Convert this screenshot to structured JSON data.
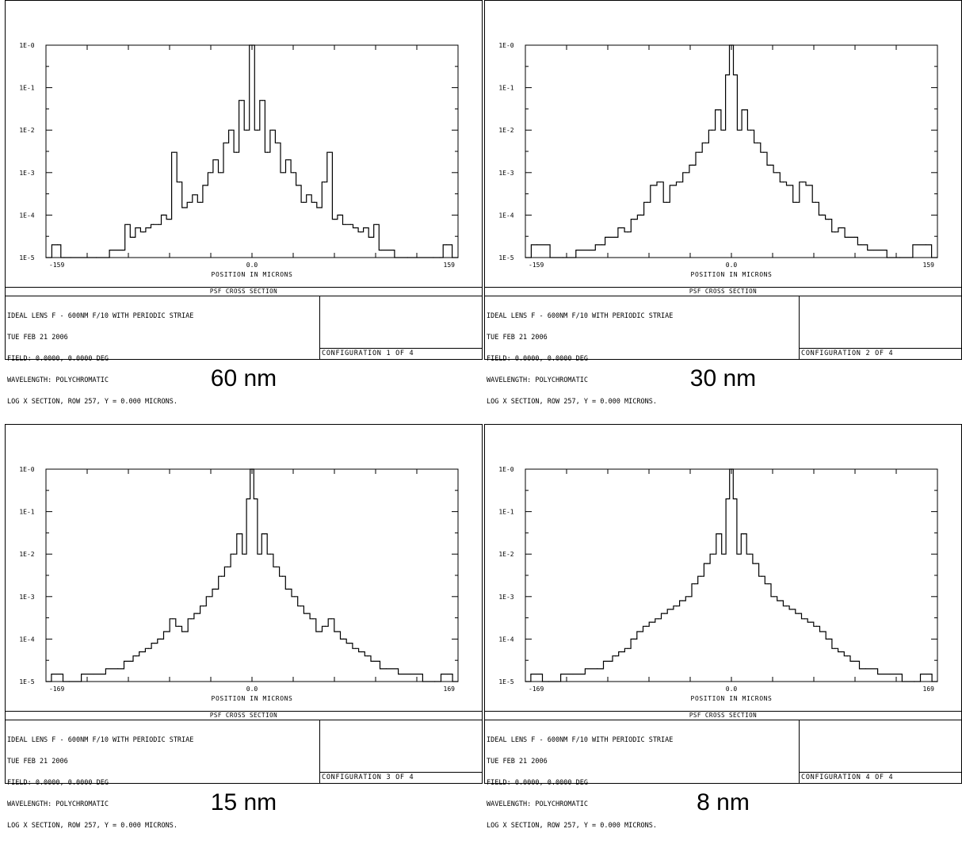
{
  "panels": [
    {
      "title_bar": "PSF CROSS SECTION",
      "info_lines": [
        "IDEAL LENS F - 600NM F/10 WITH PERIODIC STRIAE",
        "TUE FEB 21 2006",
        "FIELD: 0.0000, 0.0000 DEG",
        "WAVELENGTH: POLYCHROMATIC",
        "LOG X SECTION, ROW 257, Y = 0.000 MICRONS."
      ],
      "config_label": "CONFIGURATION 1 OF 4",
      "caption": "60 nm"
    },
    {
      "title_bar": "PSF CROSS SECTION",
      "info_lines": [
        "IDEAL LENS F - 600NM F/10 WITH PERIODIC STRIAE",
        "TUE FEB 21 2006",
        "FIELD: 0.0000, 0.0000 DEG",
        "WAVELENGTH: POLYCHROMATIC",
        "LOG X SECTION, ROW 257, Y = 0.000 MICRONS."
      ],
      "config_label": "CONFIGURATION 2 OF 4",
      "caption": "30 nm"
    },
    {
      "title_bar": "PSF CROSS SECTION",
      "info_lines": [
        "IDEAL LENS F - 600NM F/10 WITH PERIODIC STRIAE",
        "TUE FEB 21 2006",
        "FIELD: 0.0000, 0.0000 DEG",
        "WAVELENGTH: POLYCHROMATIC",
        "LOG X SECTION, ROW 257, Y = 0.000 MICRONS."
      ],
      "config_label": "CONFIGURATION 3 OF 4",
      "caption": "15 nm"
    },
    {
      "title_bar": "PSF CROSS SECTION",
      "info_lines": [
        "IDEAL LENS F - 600NM F/10 WITH PERIODIC STRIAE",
        "TUE FEB 21 2006",
        "FIELD: 0.0000, 0.0000 DEG",
        "WAVELENGTH: POLYCHROMATIC",
        "LOG X SECTION, ROW 257, Y = 0.000 MICRONS."
      ],
      "config_label": "CONFIGURATION 4 OF 4",
      "caption": "8 nm"
    }
  ],
  "chart_data": [
    {
      "type": "line",
      "title": "",
      "xlabel": "POSITION IN MICRONS",
      "ylabel": "",
      "y_scale": "log",
      "xlim": [
        -159,
        159
      ],
      "ylim": [
        1e-05,
        1
      ],
      "x_tick_labels": [
        "-159",
        "0.0",
        "159"
      ],
      "y_tick_labels": [
        "1E-0",
        "1E-1",
        "1E-2",
        "1E-3",
        "1E-4",
        "1E-5"
      ],
      "grid": false,
      "series": [
        {
          "x": [
            -159,
            -150,
            -145,
            -140,
            -120,
            -100,
            -96,
            -92,
            -88,
            -84,
            -80,
            -76,
            -72,
            -68,
            -64,
            -60,
            -56,
            -52,
            -48,
            -44,
            -40,
            -36,
            -32,
            -28,
            -24,
            -20,
            -16,
            -12,
            -8,
            -4,
            0,
            4,
            8,
            12,
            16,
            20,
            24,
            28,
            32,
            36,
            40,
            44,
            48,
            52,
            56,
            60,
            64,
            68,
            72,
            76,
            80,
            84,
            88,
            92,
            96,
            100,
            120,
            140,
            145,
            150,
            159
          ],
          "y": [
            1e-05,
            2e-05,
            1e-05,
            1e-05,
            1e-05,
            1.5e-05,
            6e-05,
            3e-05,
            5e-05,
            4e-05,
            5e-05,
            6e-05,
            6e-05,
            0.0001,
            8e-05,
            0.003,
            0.0006,
            0.00015,
            0.0002,
            0.0003,
            0.0002,
            0.0005,
            0.001,
            0.002,
            0.001,
            0.005,
            0.01,
            0.003,
            0.05,
            0.01,
            1.0,
            0.01,
            0.05,
            0.003,
            0.01,
            0.005,
            0.001,
            0.002,
            0.001,
            0.0005,
            0.0002,
            0.0003,
            0.0002,
            0.00015,
            0.0006,
            0.003,
            8e-05,
            0.0001,
            6e-05,
            6e-05,
            5e-05,
            4e-05,
            5e-05,
            3e-05,
            6e-05,
            1.5e-05,
            1e-05,
            1e-05,
            1e-05,
            2e-05,
            1e-05
          ]
        }
      ]
    },
    {
      "type": "line",
      "title": "",
      "xlabel": "POSITION IN MICRONS",
      "ylabel": "",
      "y_scale": "log",
      "xlim": [
        -159,
        159
      ],
      "ylim": [
        1e-05,
        1
      ],
      "x_tick_labels": [
        "-159",
        "0.0",
        "159"
      ],
      "y_tick_labels": [
        "1E-0",
        "1E-1",
        "1E-2",
        "1E-3",
        "1E-4",
        "1E-5"
      ],
      "grid": false,
      "series": [
        {
          "x": [
            -159,
            -150,
            -130,
            -110,
            -100,
            -95,
            -90,
            -85,
            -80,
            -75,
            -70,
            -65,
            -60,
            -55,
            -50,
            -45,
            -40,
            -35,
            -30,
            -25,
            -20,
            -15,
            -10,
            -6,
            -3,
            0,
            3,
            6,
            10,
            15,
            20,
            25,
            30,
            35,
            40,
            45,
            50,
            55,
            60,
            65,
            70,
            75,
            80,
            85,
            90,
            95,
            100,
            110,
            130,
            150,
            159
          ],
          "y": [
            1e-05,
            2e-05,
            1e-05,
            1.5e-05,
            2e-05,
            3e-05,
            3e-05,
            5e-05,
            4e-05,
            8e-05,
            0.0001,
            0.0002,
            0.0005,
            0.0006,
            0.0002,
            0.0005,
            0.0006,
            0.001,
            0.0015,
            0.003,
            0.005,
            0.01,
            0.03,
            0.01,
            0.2,
            1.0,
            0.2,
            0.01,
            0.03,
            0.01,
            0.005,
            0.003,
            0.0015,
            0.001,
            0.0006,
            0.0005,
            0.0002,
            0.0006,
            0.0005,
            0.0002,
            0.0001,
            8e-05,
            4e-05,
            5e-05,
            3e-05,
            3e-05,
            2e-05,
            1.5e-05,
            1e-05,
            2e-05,
            1e-05
          ]
        }
      ]
    },
    {
      "type": "line",
      "title": "",
      "xlabel": "POSITION IN MICRONS",
      "ylabel": "",
      "y_scale": "log",
      "xlim": [
        -169,
        169
      ],
      "ylim": [
        1e-05,
        1
      ],
      "x_tick_labels": [
        "-169",
        "0.0",
        "169"
      ],
      "y_tick_labels": [
        "1E-0",
        "1E-1",
        "1E-2",
        "1E-3",
        "1E-4",
        "1E-5"
      ],
      "grid": false,
      "series": [
        {
          "x": [
            -169,
            -160,
            -150,
            -130,
            -110,
            -100,
            -95,
            -90,
            -85,
            -80,
            -75,
            -70,
            -65,
            -60,
            -55,
            -50,
            -45,
            -40,
            -35,
            -30,
            -25,
            -20,
            -15,
            -10,
            -6,
            -3,
            0,
            3,
            6,
            10,
            15,
            20,
            25,
            30,
            35,
            40,
            45,
            50,
            55,
            60,
            65,
            70,
            75,
            80,
            85,
            90,
            95,
            100,
            110,
            130,
            150,
            160,
            169
          ],
          "y": [
            1e-05,
            1.5e-05,
            1e-05,
            1.5e-05,
            2e-05,
            3e-05,
            4e-05,
            5e-05,
            6e-05,
            8e-05,
            0.0001,
            0.00015,
            0.0003,
            0.0002,
            0.00015,
            0.0003,
            0.0004,
            0.0006,
            0.001,
            0.0015,
            0.003,
            0.005,
            0.01,
            0.03,
            0.01,
            0.2,
            1.0,
            0.2,
            0.01,
            0.03,
            0.01,
            0.005,
            0.003,
            0.0015,
            0.001,
            0.0006,
            0.0004,
            0.0003,
            0.00015,
            0.0002,
            0.0003,
            0.00015,
            0.0001,
            8e-05,
            6e-05,
            5e-05,
            4e-05,
            3e-05,
            2e-05,
            1.5e-05,
            1e-05,
            1.5e-05,
            1e-05
          ]
        }
      ]
    },
    {
      "type": "line",
      "title": "",
      "xlabel": "POSITION IN MICRONS",
      "ylabel": "",
      "y_scale": "log",
      "xlim": [
        -169,
        169
      ],
      "ylim": [
        1e-05,
        1
      ],
      "x_tick_labels": [
        "-169",
        "0.0",
        "169"
      ],
      "y_tick_labels": [
        "1E-0",
        "1E-1",
        "1E-2",
        "1E-3",
        "1E-4",
        "1E-5"
      ],
      "grid": false,
      "series": [
        {
          "x": [
            -169,
            -160,
            -150,
            -130,
            -110,
            -100,
            -95,
            -90,
            -85,
            -80,
            -75,
            -70,
            -65,
            -60,
            -55,
            -50,
            -45,
            -40,
            -35,
            -30,
            -25,
            -20,
            -15,
            -10,
            -6,
            -3,
            0,
            3,
            6,
            10,
            15,
            20,
            25,
            30,
            35,
            40,
            45,
            50,
            55,
            60,
            65,
            70,
            75,
            80,
            85,
            90,
            95,
            100,
            110,
            130,
            150,
            160,
            169
          ],
          "y": [
            1e-05,
            1.5e-05,
            1e-05,
            1.5e-05,
            2e-05,
            3e-05,
            4e-05,
            5e-05,
            6e-05,
            0.0001,
            0.00015,
            0.0002,
            0.00025,
            0.0003,
            0.0004,
            0.0005,
            0.0006,
            0.0008,
            0.001,
            0.002,
            0.003,
            0.006,
            0.01,
            0.03,
            0.01,
            0.2,
            1.0,
            0.2,
            0.01,
            0.03,
            0.01,
            0.006,
            0.003,
            0.002,
            0.001,
            0.0008,
            0.0006,
            0.0005,
            0.0004,
            0.0003,
            0.00025,
            0.0002,
            0.00015,
            0.0001,
            6e-05,
            5e-05,
            4e-05,
            3e-05,
            2e-05,
            1.5e-05,
            1e-05,
            1.5e-05,
            1e-05
          ]
        }
      ]
    }
  ]
}
